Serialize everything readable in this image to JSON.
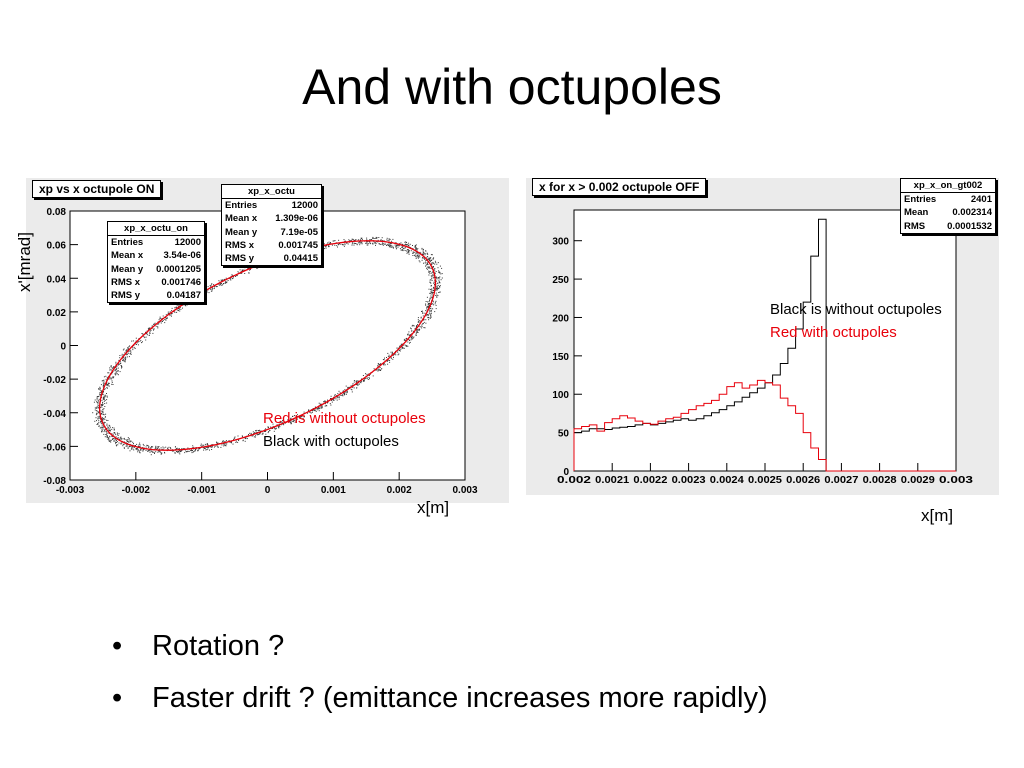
{
  "slide": {
    "title": "And with octupoles",
    "bullets": [
      "Rotation ?",
      "Faster drift ? (emittance increases more rapidly)"
    ]
  },
  "left_panel": {
    "title": "xp vs x  octupole  ON",
    "ylabel": "x'[mrad]",
    "xlabel": "x[m]",
    "stats_octu": {
      "name": "xp_x_octu",
      "rows": [
        [
          "Entries",
          "12000"
        ],
        [
          "Mean x",
          "1.309e-06"
        ],
        [
          "Mean y",
          "7.19e-05"
        ],
        [
          "RMS x",
          "0.001745"
        ],
        [
          "RMS y",
          "0.04415"
        ]
      ]
    },
    "stats_octu_on": {
      "name": "xp_x_octu_on",
      "rows": [
        [
          "Entries",
          "12000"
        ],
        [
          "Mean x",
          "3.54e-06"
        ],
        [
          "Mean y",
          "0.0001205"
        ],
        [
          "RMS x",
          "0.001746"
        ],
        [
          "RMS y",
          "0.04187"
        ]
      ]
    },
    "annotation_red": "Red is without octupoles",
    "annotation_black": "Black with octupoles"
  },
  "right_panel": {
    "title": "x for x > 0.002  octupole  OFF",
    "xlabel": "x[m]",
    "stats": {
      "name": "xp_x_on_gt002",
      "rows": [
        [
          "Entries",
          "2401"
        ],
        [
          "Mean",
          "0.002314"
        ],
        [
          "RMS",
          "0.0001532"
        ]
      ]
    },
    "annotation_black": "Black is without octupoles",
    "annotation_red": "Red with octupoles"
  },
  "colors": {
    "red": "#e8000b",
    "black": "#000000",
    "panel_bg": "#ebebeb",
    "scatter": "#3a3a3a"
  },
  "chart_data": [
    {
      "type": "scatter",
      "xlim": [
        -0.003,
        0.003
      ],
      "ylim": [
        -0.08,
        0.08
      ],
      "x_ticks": [
        "-0.003",
        "-0.002",
        "-0.001",
        "0",
        "0.001",
        "0.002",
        "0.003"
      ],
      "y_ticks": [
        "0.08",
        "0.06",
        "0.04",
        "0.02",
        "0",
        "-0.02",
        "-0.04",
        "-0.06",
        "-0.08"
      ],
      "ellipse": {
        "rx": 0.00255,
        "ry": 0.0623,
        "tilt": 0.93,
        "points": 2400,
        "spread": 0.0032
      },
      "series": [
        {
          "color": "black",
          "kind": "points"
        },
        {
          "color": "red",
          "kind": "outline"
        }
      ]
    },
    {
      "type": "bar",
      "xlim": [
        0.002,
        0.003
      ],
      "ylim": [
        0,
        340
      ],
      "x_ticks": [
        "0.002",
        "0.0021",
        "0.0022",
        "0.0023",
        "0.0024",
        "0.0025",
        "0.0026",
        "0.0027",
        "0.0028",
        "0.0029",
        "0.003"
      ],
      "y_ticks": [
        "0",
        "50",
        "100",
        "150",
        "200",
        "250",
        "300"
      ],
      "bin_start": 0.002,
      "bin_width": 2e-05,
      "series": [
        {
          "color": "black",
          "values": [
            50,
            52,
            55,
            55,
            54,
            56,
            57,
            58,
            60,
            62,
            60,
            62,
            64,
            66,
            68,
            66,
            68,
            72,
            76,
            80,
            85,
            90,
            96,
            102,
            108,
            115,
            125,
            140,
            160,
            185,
            220,
            280,
            328,
            0,
            0,
            0,
            0,
            0,
            0,
            0,
            0,
            0,
            0,
            0,
            0,
            0,
            0,
            0,
            0,
            0
          ]
        },
        {
          "color": "red",
          "values": [
            55,
            58,
            60,
            52,
            63,
            68,
            72,
            69,
            65,
            62,
            61,
            65,
            68,
            70,
            75,
            80,
            85,
            88,
            92,
            100,
            110,
            115,
            108,
            112,
            118,
            115,
            112,
            95,
            85,
            75,
            50,
            30,
            15,
            0,
            0,
            0,
            0,
            0,
            0,
            0,
            0,
            0,
            0,
            0,
            0,
            0,
            0,
            0,
            0,
            0
          ]
        }
      ]
    }
  ]
}
